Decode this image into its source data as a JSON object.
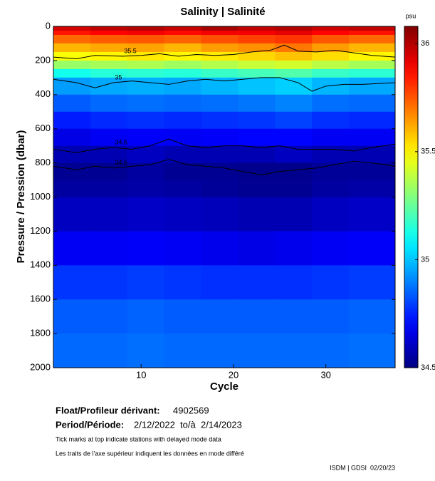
{
  "chart_data": {
    "type": "heatmap",
    "title": "Salinity | Salinité",
    "xlabel": "Cycle",
    "ylabel": "Pressure / Pression (dbar)",
    "colorbar_label": "psu",
    "colormap": "jet",
    "xlim": [
      0.5,
      37.5
    ],
    "xticks": [
      10,
      20,
      30
    ],
    "ylim": [
      2000,
      0
    ],
    "yticks": [
      0,
      200,
      400,
      600,
      800,
      1000,
      1200,
      1400,
      1600,
      1800,
      2000
    ],
    "clim": [
      34.5,
      36.08
    ],
    "cticks": [
      34.5,
      35,
      35.5,
      36
    ],
    "xbins": [
      0.5,
      4.5,
      8.5,
      12.5,
      16.5,
      20.5,
      24.5,
      28.5,
      32.5,
      37.5
    ],
    "ybins": [
      0,
      25,
      50,
      100,
      150,
      200,
      250,
      300,
      400,
      500,
      600,
      700,
      800,
      900,
      1000,
      1200,
      1400,
      1600,
      1800,
      2000
    ],
    "z": [
      [
        35.95,
        35.98,
        36.0,
        35.97,
        36.02,
        35.98,
        36.0,
        35.96,
        35.98
      ],
      [
        35.85,
        35.88,
        35.9,
        35.87,
        35.9,
        35.9,
        35.92,
        35.88,
        35.86
      ],
      [
        35.72,
        35.74,
        35.75,
        35.73,
        35.76,
        35.78,
        35.8,
        35.75,
        35.72
      ],
      [
        35.6,
        35.62,
        35.63,
        35.6,
        35.64,
        35.66,
        35.7,
        35.64,
        35.6
      ],
      [
        35.48,
        35.5,
        35.52,
        35.5,
        35.52,
        35.55,
        35.58,
        35.54,
        35.5
      ],
      [
        35.33,
        35.35,
        35.36,
        35.34,
        35.37,
        35.4,
        35.42,
        35.38,
        35.35
      ],
      [
        35.12,
        35.15,
        35.16,
        35.15,
        35.18,
        35.2,
        35.22,
        35.18,
        35.16
      ],
      [
        34.94,
        34.96,
        34.97,
        34.96,
        34.98,
        35.0,
        35.02,
        34.98,
        34.96
      ],
      [
        34.84,
        34.86,
        34.87,
        34.86,
        34.87,
        34.88,
        34.9,
        34.87,
        34.86
      ],
      [
        34.74,
        34.76,
        34.77,
        34.76,
        34.77,
        34.78,
        34.8,
        34.77,
        34.76
      ],
      [
        34.66,
        34.68,
        34.69,
        34.68,
        34.69,
        34.7,
        34.7,
        34.68,
        34.68
      ],
      [
        34.58,
        34.58,
        34.6,
        34.58,
        34.58,
        34.58,
        34.6,
        34.58,
        34.58
      ],
      [
        34.53,
        34.53,
        34.55,
        34.53,
        34.53,
        34.52,
        34.52,
        34.54,
        34.54
      ],
      [
        34.55,
        34.55,
        34.56,
        34.55,
        34.54,
        34.53,
        34.53,
        34.55,
        34.56
      ],
      [
        34.6,
        34.6,
        34.61,
        34.6,
        34.59,
        34.58,
        34.58,
        34.6,
        34.61
      ],
      [
        34.68,
        34.68,
        34.69,
        34.68,
        34.67,
        34.66,
        34.67,
        34.68,
        34.69
      ],
      [
        34.78,
        34.78,
        34.79,
        34.78,
        34.77,
        34.77,
        34.77,
        34.78,
        34.79
      ],
      [
        34.84,
        34.84,
        34.85,
        34.84,
        34.84,
        34.84,
        34.84,
        34.84,
        34.85
      ],
      [
        34.86,
        34.86,
        34.87,
        34.86,
        34.86,
        34.86,
        34.86,
        34.86,
        34.87
      ]
    ],
    "contours": [
      {
        "level": 35.5,
        "x": [
          0.5,
          3,
          5,
          8,
          10,
          12,
          14,
          16,
          18,
          20,
          22,
          24,
          25.5,
          27,
          29,
          31,
          33,
          35,
          37.5
        ],
        "y": [
          180,
          190,
          170,
          175,
          170,
          160,
          175,
          165,
          170,
          165,
          150,
          140,
          110,
          145,
          150,
          140,
          155,
          170,
          180
        ]
      },
      {
        "level": 35,
        "x": [
          0.5,
          3,
          5,
          7,
          9,
          11,
          13,
          15,
          17,
          19,
          21,
          23,
          25,
          27,
          28.5,
          30,
          32,
          34,
          37.5
        ],
        "y": [
          310,
          330,
          360,
          330,
          320,
          330,
          340,
          320,
          310,
          320,
          310,
          300,
          300,
          330,
          380,
          350,
          340,
          340,
          330
        ]
      },
      {
        "level": 34.5,
        "x": [
          0.5,
          3,
          5,
          7,
          9,
          11,
          13,
          15,
          17,
          19,
          21,
          23,
          25,
          27,
          29,
          31,
          33,
          35,
          37.5
        ],
        "y": [
          720,
          740,
          720,
          710,
          720,
          700,
          660,
          700,
          710,
          700,
          700,
          710,
          700,
          720,
          720,
          720,
          730,
          710,
          690
        ]
      },
      {
        "level": 34.5,
        "x": [
          0.5,
          3,
          5,
          7,
          9,
          11,
          13,
          15,
          17,
          19,
          21,
          23,
          25,
          27,
          29,
          31,
          33,
          35,
          37.5
        ],
        "y": [
          820,
          840,
          820,
          830,
          820,
          810,
          780,
          810,
          820,
          830,
          850,
          870,
          850,
          840,
          830,
          810,
          790,
          800,
          820
        ]
      }
    ],
    "info": {
      "float_label": "Float/Profileur dérivant:",
      "float_id": "4902569",
      "period_label": "Period/Période:",
      "period": "2/12/2022  to/à  2/14/2023",
      "note_en": "Tick marks at top indicate stations with delayed mode data",
      "note_fr": "Les traits de l'axe supérieur indiquent les données en mode différé",
      "credit": "ISDM | GDSI  02/20/23"
    }
  }
}
